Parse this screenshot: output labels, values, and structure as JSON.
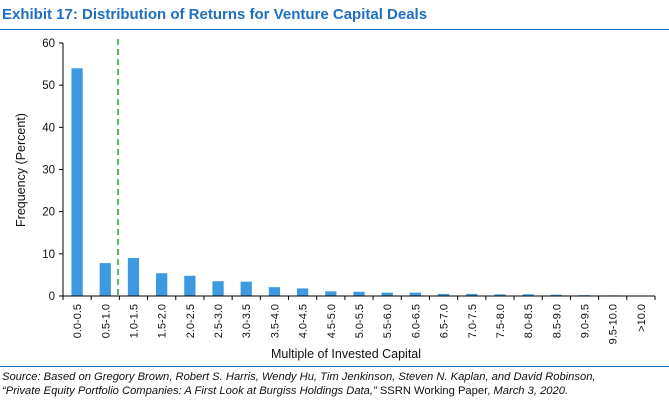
{
  "page": {
    "title": "Exhibit 17: Distribution of Returns for Venture Capital Deals",
    "source_line1": "Source: Based on Gregory Brown, Robert S. Harris, Wendy Hu, Tim Jenkinson, Steven N. Kaplan, and David Robinson,",
    "source_line2_italic": "“Private Equity Portfolio Companies: A First Look at Burgiss Holdings Data,”",
    "source_line2_plain": " SSRN Working Paper,",
    "source_line2_tail": " March 3, 2020."
  },
  "colors": {
    "title": "#1f6fc0",
    "bar": "#3d9ae0",
    "reference_line": "#2ca02c",
    "axis": "#000000"
  },
  "chart_data": {
    "type": "bar",
    "title": "",
    "xlabel": "Multiple of Invested Capital",
    "ylabel": "Frequency (Percent)",
    "ylim": [
      0,
      60
    ],
    "yticks": [
      0,
      10,
      20,
      30,
      40,
      50,
      60
    ],
    "grid": false,
    "categories": [
      "0.0-0.5",
      "0.5-1.0",
      "1.0-1.5",
      "1.5-2.0",
      "2.0-2.5",
      "2.5-3.0",
      "3.0-3.5",
      "3.5-4.0",
      "4.0-4.5",
      "4.5-5.0",
      "5.0-5.5",
      "5.5-6.0",
      "6.0-6.5",
      "6.5-7.0",
      "7.0-7.5",
      "7.5-8.0",
      "8.0-8.5",
      "8.5-9.0",
      "9.0-9.5",
      "9.5-10.0",
      ">10.0"
    ],
    "values": [
      54,
      7.8,
      9,
      5.4,
      4.8,
      3.5,
      3.4,
      2.1,
      1.8,
      1.1,
      1.0,
      0.8,
      0.8,
      0.5,
      0.5,
      0.4,
      0.4,
      0.3,
      0.2,
      0.15,
      0.1
    ],
    "reference_line": {
      "orientation": "vertical",
      "style": "dashed",
      "x_category_boundary": "between 0.5-1.0 and 1.0-1.5",
      "value": 1.0
    }
  }
}
